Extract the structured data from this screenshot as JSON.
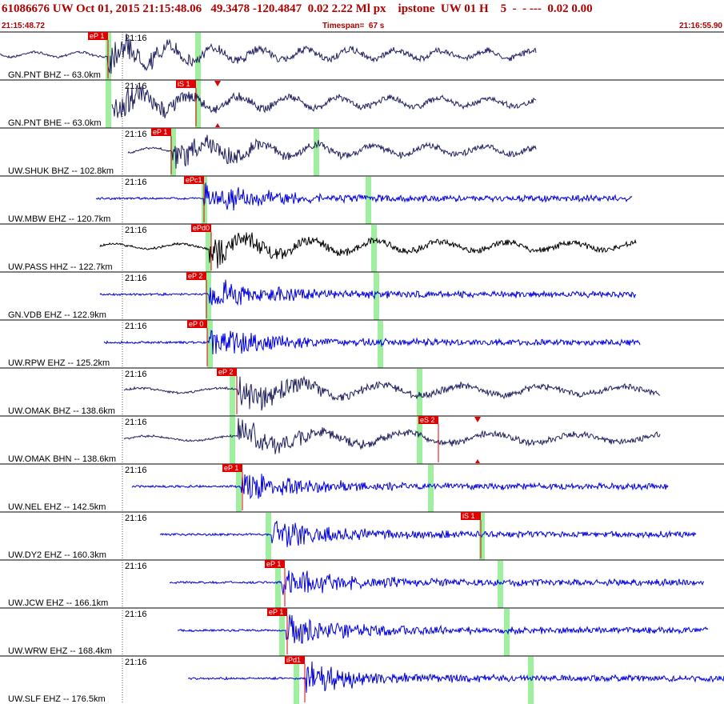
{
  "header": {
    "title": "61086676 UW Oct 01, 2015 21:15:48.06   49.3478 -120.4847  0.02 2.22 Ml px    ipstone  UW 01 H    5  -  - ---  0.02 0.00",
    "start_time": "21:15:48.72",
    "timespan": "Timespan=  67 s",
    "end_time": "21:16:55.90"
  },
  "traces": [
    {
      "time_mark": "21:16",
      "pick": "eP 1",
      "label": "GN.PNT BHZ -- 63.0km"
    },
    {
      "time_mark": "21:16",
      "pick": "iS 1",
      "label": "GN.PNT BHE -- 63.0km"
    },
    {
      "time_mark": "21:16",
      "pick": "eP 1",
      "label": "UW.SHUK BHZ -- 102.8km"
    },
    {
      "time_mark": "21:16",
      "pick": "ePc1",
      "label": "UW.MBW EHZ -- 120.7km"
    },
    {
      "time_mark": "21:16",
      "pick": "ePd0",
      "label": "UW.PASS HHZ -- 122.7km"
    },
    {
      "time_mark": "21:16",
      "pick": "eP 2",
      "label": "GN.VDB EHZ -- 122.9km"
    },
    {
      "time_mark": "21:16",
      "pick": "eP 0",
      "label": "UW.RPW EHZ -- 125.2km"
    },
    {
      "time_mark": "21:16",
      "pick": "eP 2",
      "label": "UW.OMAK BHZ -- 138.6km"
    },
    {
      "time_mark": "21:16",
      "pick": "eS 2",
      "label": "UW.OMAK BHN -- 138.6km"
    },
    {
      "time_mark": "21:16",
      "pick": "eP 1",
      "label": "UW.NEL EHZ -- 142.5km"
    },
    {
      "time_mark": "21:16",
      "pick": "iS 1",
      "label": "UW.DY2 EHZ -- 160.3km"
    },
    {
      "time_mark": "21:16",
      "pick": "eP 1",
      "label": "UW.JCW EHZ -- 166.1km"
    },
    {
      "time_mark": "21:16",
      "pick": "eP 1",
      "label": "UW.WRW EHZ -- 168.4km"
    },
    {
      "time_mark": "21:16",
      "pick": "iPd1",
      "label": "UW.SLF EHZ -- 176.5km"
    }
  ]
}
